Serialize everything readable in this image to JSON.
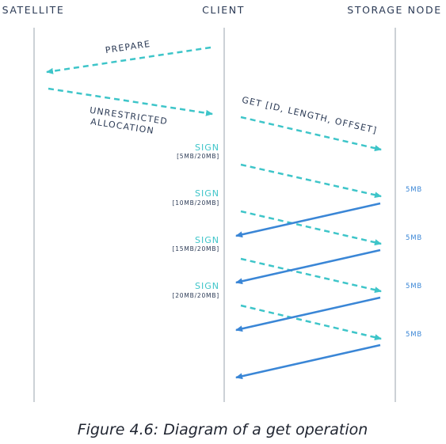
{
  "lanes": {
    "satellite": "SATELLITE",
    "client": "CLIENT",
    "storage_node": "STORAGE NODE"
  },
  "messages": {
    "prepare": "PREPARE",
    "unrestricted_line1": "UNRESTRICTED",
    "unrestricted_line2": "ALLOCATION",
    "get": "GET [ID, LENGTH, OFFSET]"
  },
  "signs": [
    {
      "label": "SIGN",
      "range": "[5MB/20MB]"
    },
    {
      "label": "SIGN",
      "range": "[10MB/20MB]"
    },
    {
      "label": "SIGN",
      "range": "[15MB/20MB]"
    },
    {
      "label": "SIGN",
      "range": "[20MB/20MB]"
    }
  ],
  "chunks": [
    "5MB",
    "5MB",
    "5MB",
    "5MB"
  ],
  "caption": "Figure 4.6: Diagram of a get operation",
  "colors": {
    "dashed_arrow": "#3ec5c9",
    "solid_arrow": "#3a86d6",
    "lane_line": "#9aa3ad",
    "text_dark": "#2b3a55"
  }
}
